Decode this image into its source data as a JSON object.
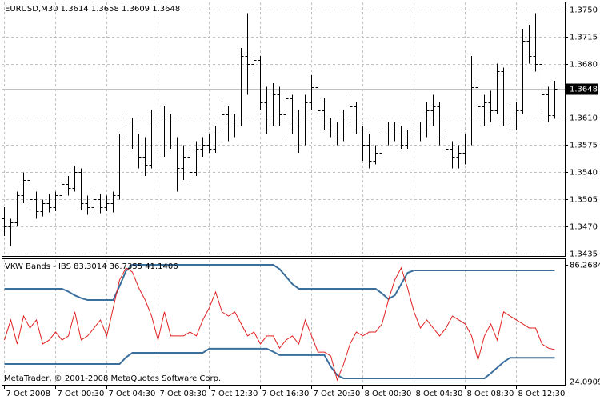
{
  "chart_data": [
    {
      "type": "ohlc",
      "title": "EURUSD,M30",
      "color": "#000000",
      "grid": "both",
      "price_line": true,
      "price_line_color": "#c0c0c0",
      "categories": [
        "7 Oct 2008",
        null,
        null,
        null,
        null,
        null,
        null,
        null,
        "7 Oct 00:30",
        null,
        null,
        null,
        null,
        null,
        null,
        null,
        "7 Oct 04:30",
        null,
        null,
        null,
        null,
        null,
        null,
        null,
        "7 Oct 08:30",
        null,
        null,
        null,
        null,
        null,
        null,
        null,
        "7 Oct 12:30",
        null,
        null,
        null,
        null,
        null,
        null,
        null,
        "7 Oct 16:30",
        null,
        null,
        null,
        null,
        null,
        null,
        null,
        "7 Oct 20:30",
        null,
        null,
        null,
        null,
        null,
        null,
        null,
        "8 Oct 00:30",
        null,
        null,
        null,
        null,
        null,
        null,
        null,
        "8 Oct 04:30",
        null,
        null,
        null,
        null,
        null,
        null,
        null,
        "8 Oct 08:30",
        null,
        null,
        null,
        null,
        null,
        null,
        null,
        "8 Oct 12:30",
        null,
        null,
        null,
        null,
        null,
        null
      ],
      "open": [
        1.348,
        1.347,
        1.3475,
        1.351,
        1.353,
        1.3505,
        1.349,
        1.35,
        1.3495,
        1.351,
        1.3525,
        1.352,
        1.354,
        1.35,
        1.3495,
        1.3505,
        1.3495,
        1.35,
        1.351,
        1.3585,
        1.3605,
        1.358,
        1.356,
        1.355,
        1.36,
        1.358,
        1.361,
        1.358,
        1.3545,
        1.356,
        1.354,
        1.357,
        1.3575,
        1.357,
        1.3595,
        1.3615,
        1.36,
        1.3605,
        1.369,
        1.368,
        1.3685,
        1.363,
        1.361,
        1.364,
        1.3615,
        1.3635,
        1.36,
        1.358,
        1.363,
        1.365,
        1.362,
        1.3605,
        1.359,
        1.3585,
        1.361,
        1.3625,
        1.3595,
        1.3575,
        1.3555,
        1.3565,
        1.359,
        1.36,
        1.359,
        1.3575,
        1.3585,
        1.359,
        1.3595,
        1.362,
        1.3625,
        1.3585,
        1.357,
        1.356,
        1.3565,
        1.358,
        1.365,
        1.3625,
        1.363,
        1.362,
        1.367,
        1.361,
        1.36,
        1.362,
        1.371,
        1.369,
        1.368,
        1.364,
        1.3614
      ],
      "high": [
        1.3495,
        1.348,
        1.3515,
        1.354,
        1.354,
        1.3515,
        1.3505,
        1.3512,
        1.3515,
        1.353,
        1.3535,
        1.3548,
        1.3545,
        1.351,
        1.3515,
        1.3512,
        1.351,
        1.3515,
        1.359,
        1.3615,
        1.361,
        1.359,
        1.3585,
        1.362,
        1.3605,
        1.3625,
        1.3615,
        1.3585,
        1.3575,
        1.357,
        1.358,
        1.3585,
        1.359,
        1.36,
        1.3635,
        1.3625,
        1.3615,
        1.37,
        1.3745,
        1.3695,
        1.369,
        1.365,
        1.3655,
        1.365,
        1.3645,
        1.364,
        1.362,
        1.364,
        1.3665,
        1.3655,
        1.3635,
        1.361,
        1.3605,
        1.362,
        1.364,
        1.363,
        1.36,
        1.359,
        1.3575,
        1.3595,
        1.3605,
        1.3605,
        1.36,
        1.3595,
        1.36,
        1.3605,
        1.363,
        1.364,
        1.363,
        1.3595,
        1.358,
        1.3575,
        1.359,
        1.369,
        1.366,
        1.364,
        1.3645,
        1.368,
        1.3675,
        1.3625,
        1.363,
        1.3725,
        1.373,
        1.3745,
        1.3685,
        1.365,
        1.3658
      ],
      "low": [
        1.3458,
        1.3445,
        1.347,
        1.35,
        1.3495,
        1.348,
        1.3483,
        1.3488,
        1.349,
        1.35,
        1.351,
        1.3515,
        1.3492,
        1.3485,
        1.3488,
        1.3487,
        1.349,
        1.3488,
        1.3505,
        1.356,
        1.357,
        1.3545,
        1.3535,
        1.3545,
        1.3565,
        1.356,
        1.357,
        1.3515,
        1.353,
        1.353,
        1.3535,
        1.356,
        1.3565,
        1.3565,
        1.358,
        1.358,
        1.3585,
        1.36,
        1.364,
        1.3665,
        1.362,
        1.359,
        1.36,
        1.36,
        1.3585,
        1.359,
        1.3565,
        1.3575,
        1.362,
        1.361,
        1.3595,
        1.3585,
        1.3575,
        1.358,
        1.36,
        1.359,
        1.3555,
        1.3545,
        1.355,
        1.356,
        1.3575,
        1.358,
        1.357,
        1.357,
        1.3575,
        1.358,
        1.3585,
        1.36,
        1.3575,
        1.356,
        1.3545,
        1.3545,
        1.355,
        1.3575,
        1.3615,
        1.36,
        1.3605,
        1.3615,
        1.36,
        1.359,
        1.3595,
        1.3615,
        1.368,
        1.367,
        1.362,
        1.3605,
        1.3609
      ],
      "close": [
        1.347,
        1.3475,
        1.351,
        1.353,
        1.3505,
        1.349,
        1.35,
        1.3495,
        1.351,
        1.3525,
        1.352,
        1.354,
        1.35,
        1.3495,
        1.3505,
        1.3495,
        1.35,
        1.351,
        1.3585,
        1.3605,
        1.358,
        1.356,
        1.355,
        1.36,
        1.358,
        1.361,
        1.358,
        1.3545,
        1.356,
        1.354,
        1.357,
        1.3575,
        1.357,
        1.3595,
        1.3615,
        1.36,
        1.3605,
        1.369,
        1.368,
        1.3685,
        1.363,
        1.361,
        1.364,
        1.3615,
        1.3635,
        1.36,
        1.358,
        1.363,
        1.365,
        1.362,
        1.3605,
        1.359,
        1.3585,
        1.361,
        1.3625,
        1.3595,
        1.3575,
        1.3555,
        1.3565,
        1.359,
        1.36,
        1.359,
        1.3575,
        1.3585,
        1.359,
        1.3595,
        1.362,
        1.3625,
        1.3585,
        1.357,
        1.356,
        1.3565,
        1.358,
        1.365,
        1.3625,
        1.363,
        1.362,
        1.367,
        1.361,
        1.36,
        1.362,
        1.371,
        1.369,
        1.368,
        1.364,
        1.3614,
        1.3648
      ],
      "ylim": [
        1.3431,
        1.3759
      ],
      "yticks": [
        {
          "value": 1.375,
          "label": "1.3750"
        },
        1.3715,
        {
          "value": 1.368,
          "label": "1.3680"
        },
        {
          "value": 1.361,
          "label": "1.3610"
        },
        1.3575,
        {
          "value": 1.354,
          "label": "1.3540"
        },
        1.3505,
        {
          "value": 1.347,
          "label": "1.3470"
        },
        1.3435
      ]
    },
    {
      "type": "line",
      "title": "VKW Bands - IBS",
      "grid": "x",
      "footer": "MetaTrader, © 2001-2008 MetaQuotes Software Corp.",
      "series": [
        {
          "color": "#3a6f9e",
          "values": [
            73.5,
            73.5,
            73.5,
            73.5,
            73.5,
            73.5,
            73.5,
            73.5,
            73.5,
            73.5,
            72.0,
            70.0,
            68.5,
            67.5,
            67.5,
            67.5,
            67.5,
            67.5,
            75.0,
            83.0,
            86.2684,
            86.2684,
            86.2684,
            86.2684,
            86.2684,
            86.2684,
            86.2684,
            86.2684,
            86.2684,
            86.2684,
            86.2684,
            86.2684,
            86.2684,
            86.2684,
            86.2684,
            86.2684,
            86.2684,
            86.2684,
            86.2684,
            86.2684,
            86.2684,
            86.2684,
            86.2684,
            84.0,
            80.0,
            76.0,
            73.5,
            73.5,
            73.5,
            73.5,
            73.5,
            73.5,
            73.5,
            73.5,
            73.5,
            73.5,
            73.5,
            73.5,
            73.5,
            71.0,
            68.0,
            70.0,
            76.0,
            82.0,
            83.3014,
            83.3014,
            83.3014,
            83.3014,
            83.3014,
            83.3014,
            83.3014,
            83.3014,
            83.3014,
            83.3014,
            83.3014,
            83.3014,
            83.3014,
            83.3014,
            83.3014,
            83.3014,
            83.3014,
            83.3014,
            83.3014,
            83.3014,
            83.3014,
            83.3014,
            83.3014
          ]
        },
        {
          "color": "#3a6f9e",
          "values": [
            33.45,
            33.45,
            33.45,
            33.45,
            33.45,
            33.45,
            33.45,
            33.45,
            33.45,
            33.45,
            33.45,
            33.45,
            33.45,
            33.45,
            33.45,
            33.45,
            33.45,
            33.45,
            33.45,
            37.0,
            39.4,
            39.4,
            39.4,
            39.4,
            39.4,
            39.4,
            39.4,
            39.4,
            39.4,
            39.4,
            39.4,
            39.4,
            41.6,
            41.6,
            41.6,
            41.6,
            41.6,
            41.6,
            41.6,
            41.6,
            41.6,
            41.6,
            40.0,
            38.2,
            38.2,
            38.2,
            38.2,
            38.2,
            38.2,
            38.2,
            38.2,
            32.0,
            27.5,
            25.8,
            25.8,
            25.8,
            25.8,
            25.8,
            25.8,
            25.8,
            25.8,
            25.8,
            25.8,
            25.8,
            25.8,
            25.8,
            25.8,
            25.8,
            25.8,
            25.8,
            25.8,
            25.8,
            25.8,
            25.8,
            25.8,
            25.8,
            28.5,
            31.5,
            34.5,
            36.7355,
            36.7355,
            36.7355,
            36.7355,
            36.7355,
            36.7355,
            36.7355,
            36.7355
          ]
        },
        {
          "color": "#e02020",
          "values": [
            46.2,
            56.9,
            44.1,
            59.0,
            52.6,
            56.9,
            44.1,
            46.2,
            50.5,
            46.2,
            48.4,
            61.2,
            46.2,
            48.4,
            52.6,
            56.9,
            48.4,
            63.3,
            78.2,
            84.6,
            82.4,
            73.9,
            67.5,
            59.0,
            46.2,
            61.2,
            48.4,
            48.4,
            48.4,
            50.5,
            48.4,
            56.9,
            63.3,
            71.8,
            61.2,
            59.0,
            61.2,
            54.8,
            48.4,
            50.5,
            44.1,
            48.4,
            48.4,
            41.9,
            46.2,
            48.4,
            44.1,
            56.9,
            48.4,
            39.8,
            39.8,
            37.7,
            24.9,
            33.4,
            44.1,
            50.5,
            48.4,
            50.5,
            50.5,
            54.8,
            67.5,
            78.2,
            84.6,
            73.9,
            61.2,
            52.6,
            56.9,
            52.6,
            48.4,
            52.6,
            59.0,
            56.9,
            54.8,
            48.4,
            35.6,
            48.4,
            54.8,
            46.2,
            61.2,
            59.0,
            56.9,
            54.8,
            52.6,
            52.6,
            44.1,
            41.9,
            41.1406
          ]
        }
      ],
      "ylim": [
        21.96,
        88.82
      ],
      "yticks": [
        86.2684,
        24.0909
      ]
    }
  ]
}
